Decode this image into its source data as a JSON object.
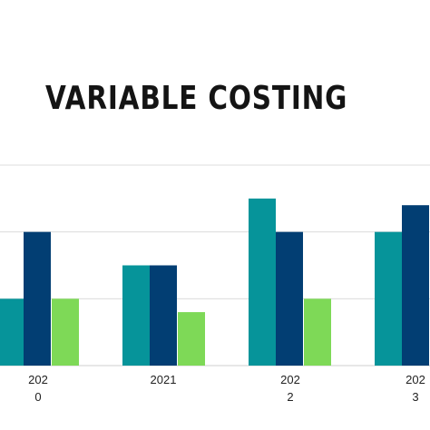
{
  "chart_data": {
    "type": "bar",
    "title": "VARIABLE COSTING",
    "xlabel": "",
    "ylabel": "",
    "categories": [
      [
        "202",
        "0"
      ],
      [
        "2021"
      ],
      [
        "202",
        "2"
      ],
      [
        "202",
        "3"
      ]
    ],
    "series": [
      {
        "color": "#06949A",
        "values": [
          2,
          3,
          5,
          4
        ]
      },
      {
        "color": "#023E73",
        "values": [
          4,
          3,
          4,
          4.8
        ]
      },
      {
        "color": "#7ED957",
        "values": [
          2,
          1.6,
          2,
          0
        ]
      }
    ],
    "ylim": [
      0,
      6
    ],
    "grid": true,
    "gridlines": [
      2,
      4,
      6
    ]
  }
}
